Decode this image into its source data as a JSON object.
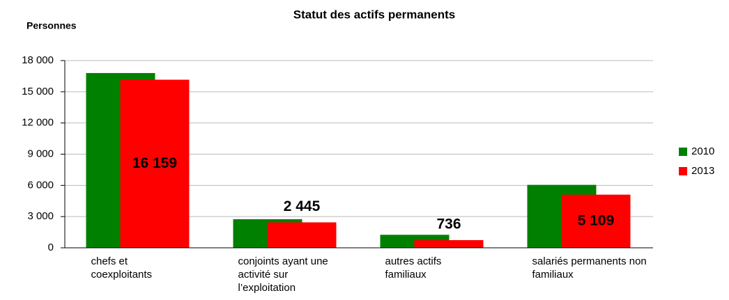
{
  "chart_data": {
    "type": "bar",
    "title": "Statut des actifs permanents",
    "y_label": "Personnes",
    "categories": [
      "chefs et coexploitants",
      "conjoints ayant une activité sur l’exploitation",
      "autres actifs familiaux",
      "salariés permanents non familiaux"
    ],
    "series": [
      {
        "name": "2010",
        "color": "#008000",
        "values": [
          16800,
          2750,
          1250,
          6050
        ]
      },
      {
        "name": "2013",
        "color": "#ff0000",
        "values": [
          16159,
          2445,
          736,
          5109
        ],
        "value_labels": [
          "16 159",
          "2 445",
          "736",
          "5 109"
        ]
      }
    ],
    "ylim": [
      0,
      18000
    ],
    "yticks": [
      0,
      {
        "value": 3000,
        "label": "3 000"
      },
      {
        "value": 6000,
        "label": "6 000"
      },
      {
        "value": 9000,
        "label": "9 000"
      },
      {
        "value": 12000,
        "label": "12 000"
      },
      {
        "value": 15000,
        "label": "15 000"
      },
      {
        "value": 18000,
        "label": "18 000"
      }
    ],
    "grid": true,
    "legend": "right"
  }
}
